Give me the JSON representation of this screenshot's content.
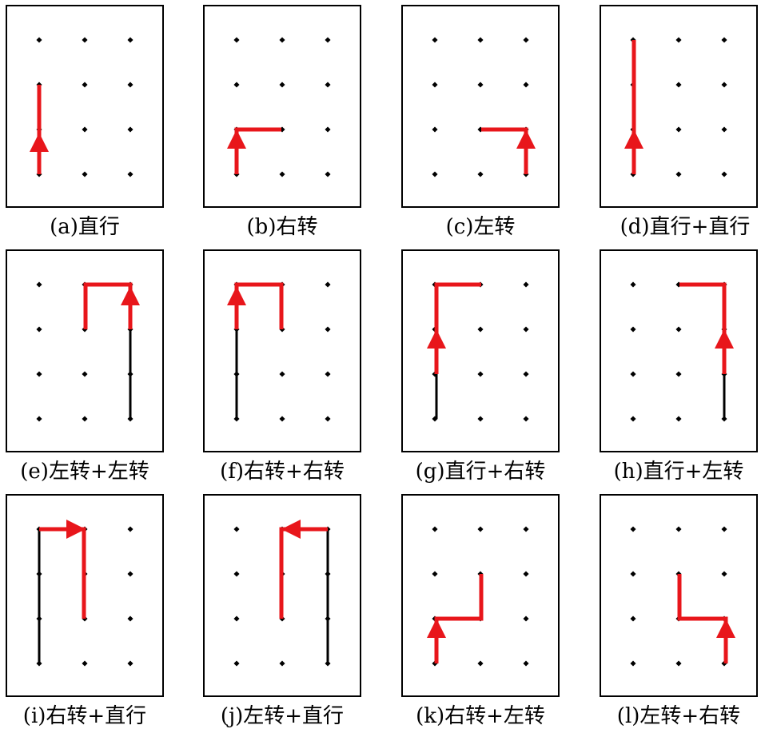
{
  "panels": [
    {
      "caption": "(a)直行"
    },
    {
      "caption": "(b)右转"
    },
    {
      "caption": "(c)左转"
    },
    {
      "caption": "(d)直行+直行"
    },
    {
      "caption": "(e)左转+左转"
    },
    {
      "caption": "(f)右转+右转"
    },
    {
      "caption": "(g)直行+右转"
    },
    {
      "caption": "(h)直行+左转"
    },
    {
      "caption": "(i)右转+直行"
    },
    {
      "caption": "(j)左转+直行"
    },
    {
      "caption": "(k)右转+左转"
    },
    {
      "caption": "(l)左转+右转"
    }
  ],
  "colors": {
    "path": "#e8161b",
    "history": "#000000",
    "dot": "#000000"
  }
}
